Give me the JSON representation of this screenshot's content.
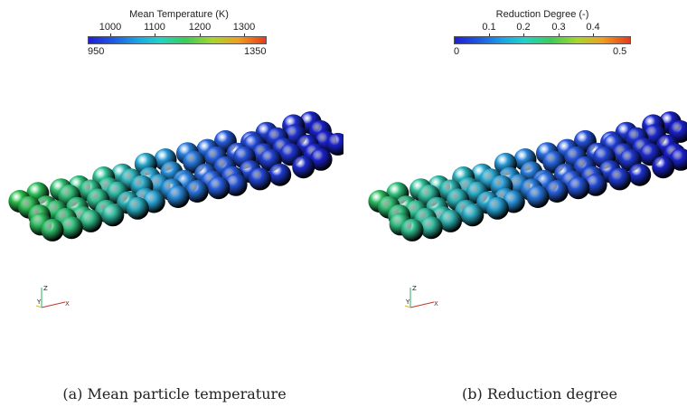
{
  "panels": [
    {
      "id": "a",
      "colorbar": {
        "title": "Mean Temperature (K)",
        "ticks_top": [
          "1000",
          "1100",
          "1200",
          "1300"
        ],
        "min_label": "950",
        "max_label": "1350"
      },
      "caption": "(a) Mean particle temperature"
    },
    {
      "id": "b",
      "colorbar": {
        "title": "Reduction Degree (-)",
        "ticks_top": [
          "0.1",
          "0.2",
          "0.3",
          "0.4"
        ],
        "min_label": "0",
        "max_label": "0.5"
      },
      "caption": "(b) Reduction degree"
    }
  ],
  "axes_labels": {
    "z": "Z",
    "y": "Y",
    "x": "X"
  },
  "colors": {
    "background": "#ffffff",
    "low": "#1a2cd6",
    "mid_blue": "#2f6fe0",
    "cyan": "#22b8c8",
    "green": "#2fbf5a",
    "high": "#e8321e",
    "axis_x": "#c0392b",
    "axis_y": "#d4c020",
    "axis_z": "#27ae60"
  }
}
